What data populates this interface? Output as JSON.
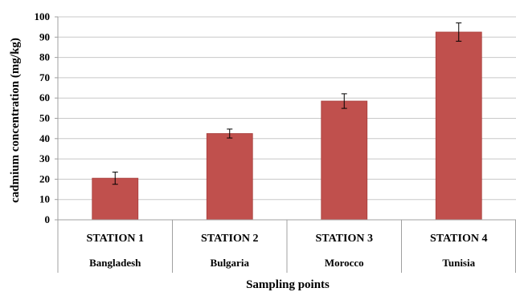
{
  "chart_data": {
    "type": "bar",
    "title": "",
    "xlabel": "Sampling points",
    "ylabel": "cadmium concentration (mg/kg)",
    "ylim": [
      0,
      100
    ],
    "ytick_step": 10,
    "grid": true,
    "categories": [
      "STATION 1",
      "STATION 2",
      "STATION 3",
      "STATION 4"
    ],
    "subcategories": [
      "Bangladesh",
      "Bulgaria",
      "Morocco",
      "Tunisia"
    ],
    "values": [
      20.5,
      42.5,
      58.5,
      92.5
    ],
    "errors": [
      3.0,
      2.2,
      3.6,
      4.5
    ],
    "bar_color": "#c0504d",
    "bar_edge_color": "#a83f3c",
    "grid_color": "#c8c8c8"
  }
}
